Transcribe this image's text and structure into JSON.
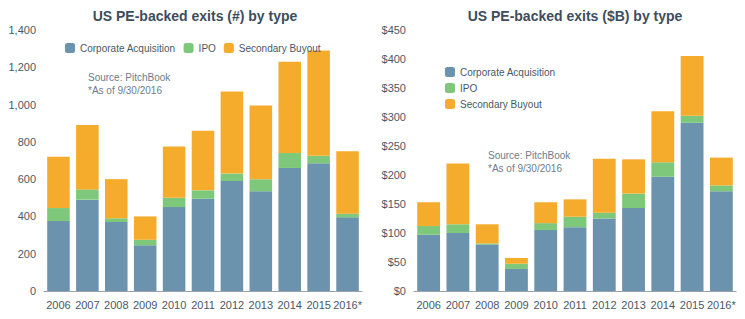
{
  "chart_data": [
    {
      "type": "bar",
      "title": "US PE-backed exits (#) by type",
      "categories": [
        "2006",
        "2007",
        "2008",
        "2009",
        "2010",
        "2011",
        "2012",
        "2013",
        "2014",
        "2015",
        "2016*"
      ],
      "series": [
        {
          "name": "Corporate Acquisition",
          "color": "#6b93ad",
          "values": [
            375,
            490,
            370,
            245,
            450,
            495,
            590,
            535,
            660,
            685,
            395
          ]
        },
        {
          "name": "IPO",
          "color": "#7dc87a",
          "values": [
            70,
            55,
            20,
            30,
            50,
            45,
            40,
            65,
            80,
            40,
            20
          ]
        },
        {
          "name": "Secondary Buyout",
          "color": "#f5ab2b",
          "values": [
            275,
            345,
            210,
            125,
            275,
            320,
            440,
            395,
            490,
            565,
            335
          ]
        }
      ],
      "ylim": [
        0,
        1400
      ],
      "yticks": [
        0,
        200,
        400,
        600,
        800,
        {
          "value": 1000,
          "label": "1,000"
        },
        {
          "value": 1200,
          "label": "1,200"
        },
        {
          "value": 1400,
          "label": "1,400"
        }
      ],
      "stacked": true,
      "grid": false,
      "legend": "top-left",
      "annotations": [
        "Source: PitchBook",
        "*As of 9/30/2016"
      ]
    },
    {
      "type": "bar",
      "title": "US PE-backed exits ($B) by type",
      "categories": [
        "2006",
        "2007",
        "2008",
        "2009",
        "2010",
        "2011",
        "2012",
        "2013",
        "2014",
        "2015",
        "2016*"
      ],
      "series": [
        {
          "name": "Corporate Acquisition",
          "color": "#6b93ad",
          "values": [
            97,
            100,
            80,
            38,
            105,
            110,
            125,
            143,
            197,
            290,
            172
          ]
        },
        {
          "name": "IPO",
          "color": "#7dc87a",
          "values": [
            15,
            15,
            2,
            9,
            12,
            18,
            10,
            25,
            25,
            12,
            10
          ]
        },
        {
          "name": "Secondary Buyout",
          "color": "#f5ab2b",
          "values": [
            41,
            105,
            33,
            10,
            36,
            30,
            93,
            59,
            88,
            103,
            48
          ]
        }
      ],
      "ylim": [
        0,
        450
      ],
      "yticks": [
        {
          "value": 0,
          "label": "$0"
        },
        {
          "value": 50,
          "label": "$50"
        },
        {
          "value": 100,
          "label": "$100"
        },
        {
          "value": 150,
          "label": "$150"
        },
        {
          "value": 200,
          "label": "$200"
        },
        {
          "value": 250,
          "label": "$250"
        },
        {
          "value": 300,
          "label": "$300"
        },
        {
          "value": 350,
          "label": "$350"
        },
        {
          "value": 400,
          "label": "$400"
        },
        {
          "value": 450,
          "label": "$450"
        }
      ],
      "stacked": true,
      "grid": false,
      "legend": "top-left",
      "annotations": [
        "Source: PitchBook",
        "*As of 9/30/2016"
      ]
    }
  ]
}
